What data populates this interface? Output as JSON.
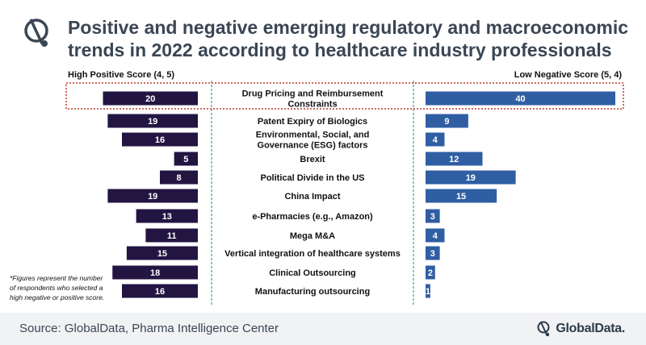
{
  "title_lines": [
    "Positive and negative emerging regulatory and macroeconomic",
    "trends in 2022 according to healthcare industry professionals"
  ],
  "colors": {
    "negative_bar": "#221542",
    "positive_bar": "#2f5ea3",
    "highlight": "#c0392b",
    "divider": "#2a8a73"
  },
  "chart_data": {
    "type": "bar",
    "orientation": "horizontal-diverging",
    "title": "Positive and negative emerging regulatory and macroeconomic trends in 2022 according to healthcare industry professionals",
    "left_header": "High Positive Score (4, 5)",
    "right_header": "Low Negative Score (5, 4)",
    "categories": [
      [
        "Drug Pricing and Reimbursement",
        "Constraints"
      ],
      [
        "Patent Expiry of Biologics"
      ],
      [
        "Environmental, Social, and",
        "Governance (ESG) factors"
      ],
      [
        "Brexit"
      ],
      [
        "Political Divide in the US"
      ],
      [
        "China Impact"
      ],
      [
        "e-Pharmacies (e.g., Amazon)"
      ],
      [
        "Mega M&A"
      ],
      [
        "Vertical integration of healthcare systems"
      ],
      [
        "Clinical Outsourcing"
      ],
      [
        "Manufacturing outsourcing"
      ]
    ],
    "series": [
      {
        "name": "High Positive Score (4, 5)",
        "values": [
          20,
          19,
          16,
          5,
          8,
          19,
          13,
          11,
          15,
          18,
          16
        ]
      },
      {
        "name": "Low Negative Score (5, 4)",
        "values": [
          40,
          9,
          4,
          12,
          19,
          15,
          3,
          4,
          3,
          2,
          1
        ]
      }
    ],
    "highlighted_category_index": 0,
    "note_lines": [
      "*Figures represent the number",
      "of respondents who selected a",
      "high negative or positive score."
    ]
  },
  "footer": {
    "source": "Source: GlobalData, Pharma Intelligence Center",
    "brand": "GlobalData."
  }
}
